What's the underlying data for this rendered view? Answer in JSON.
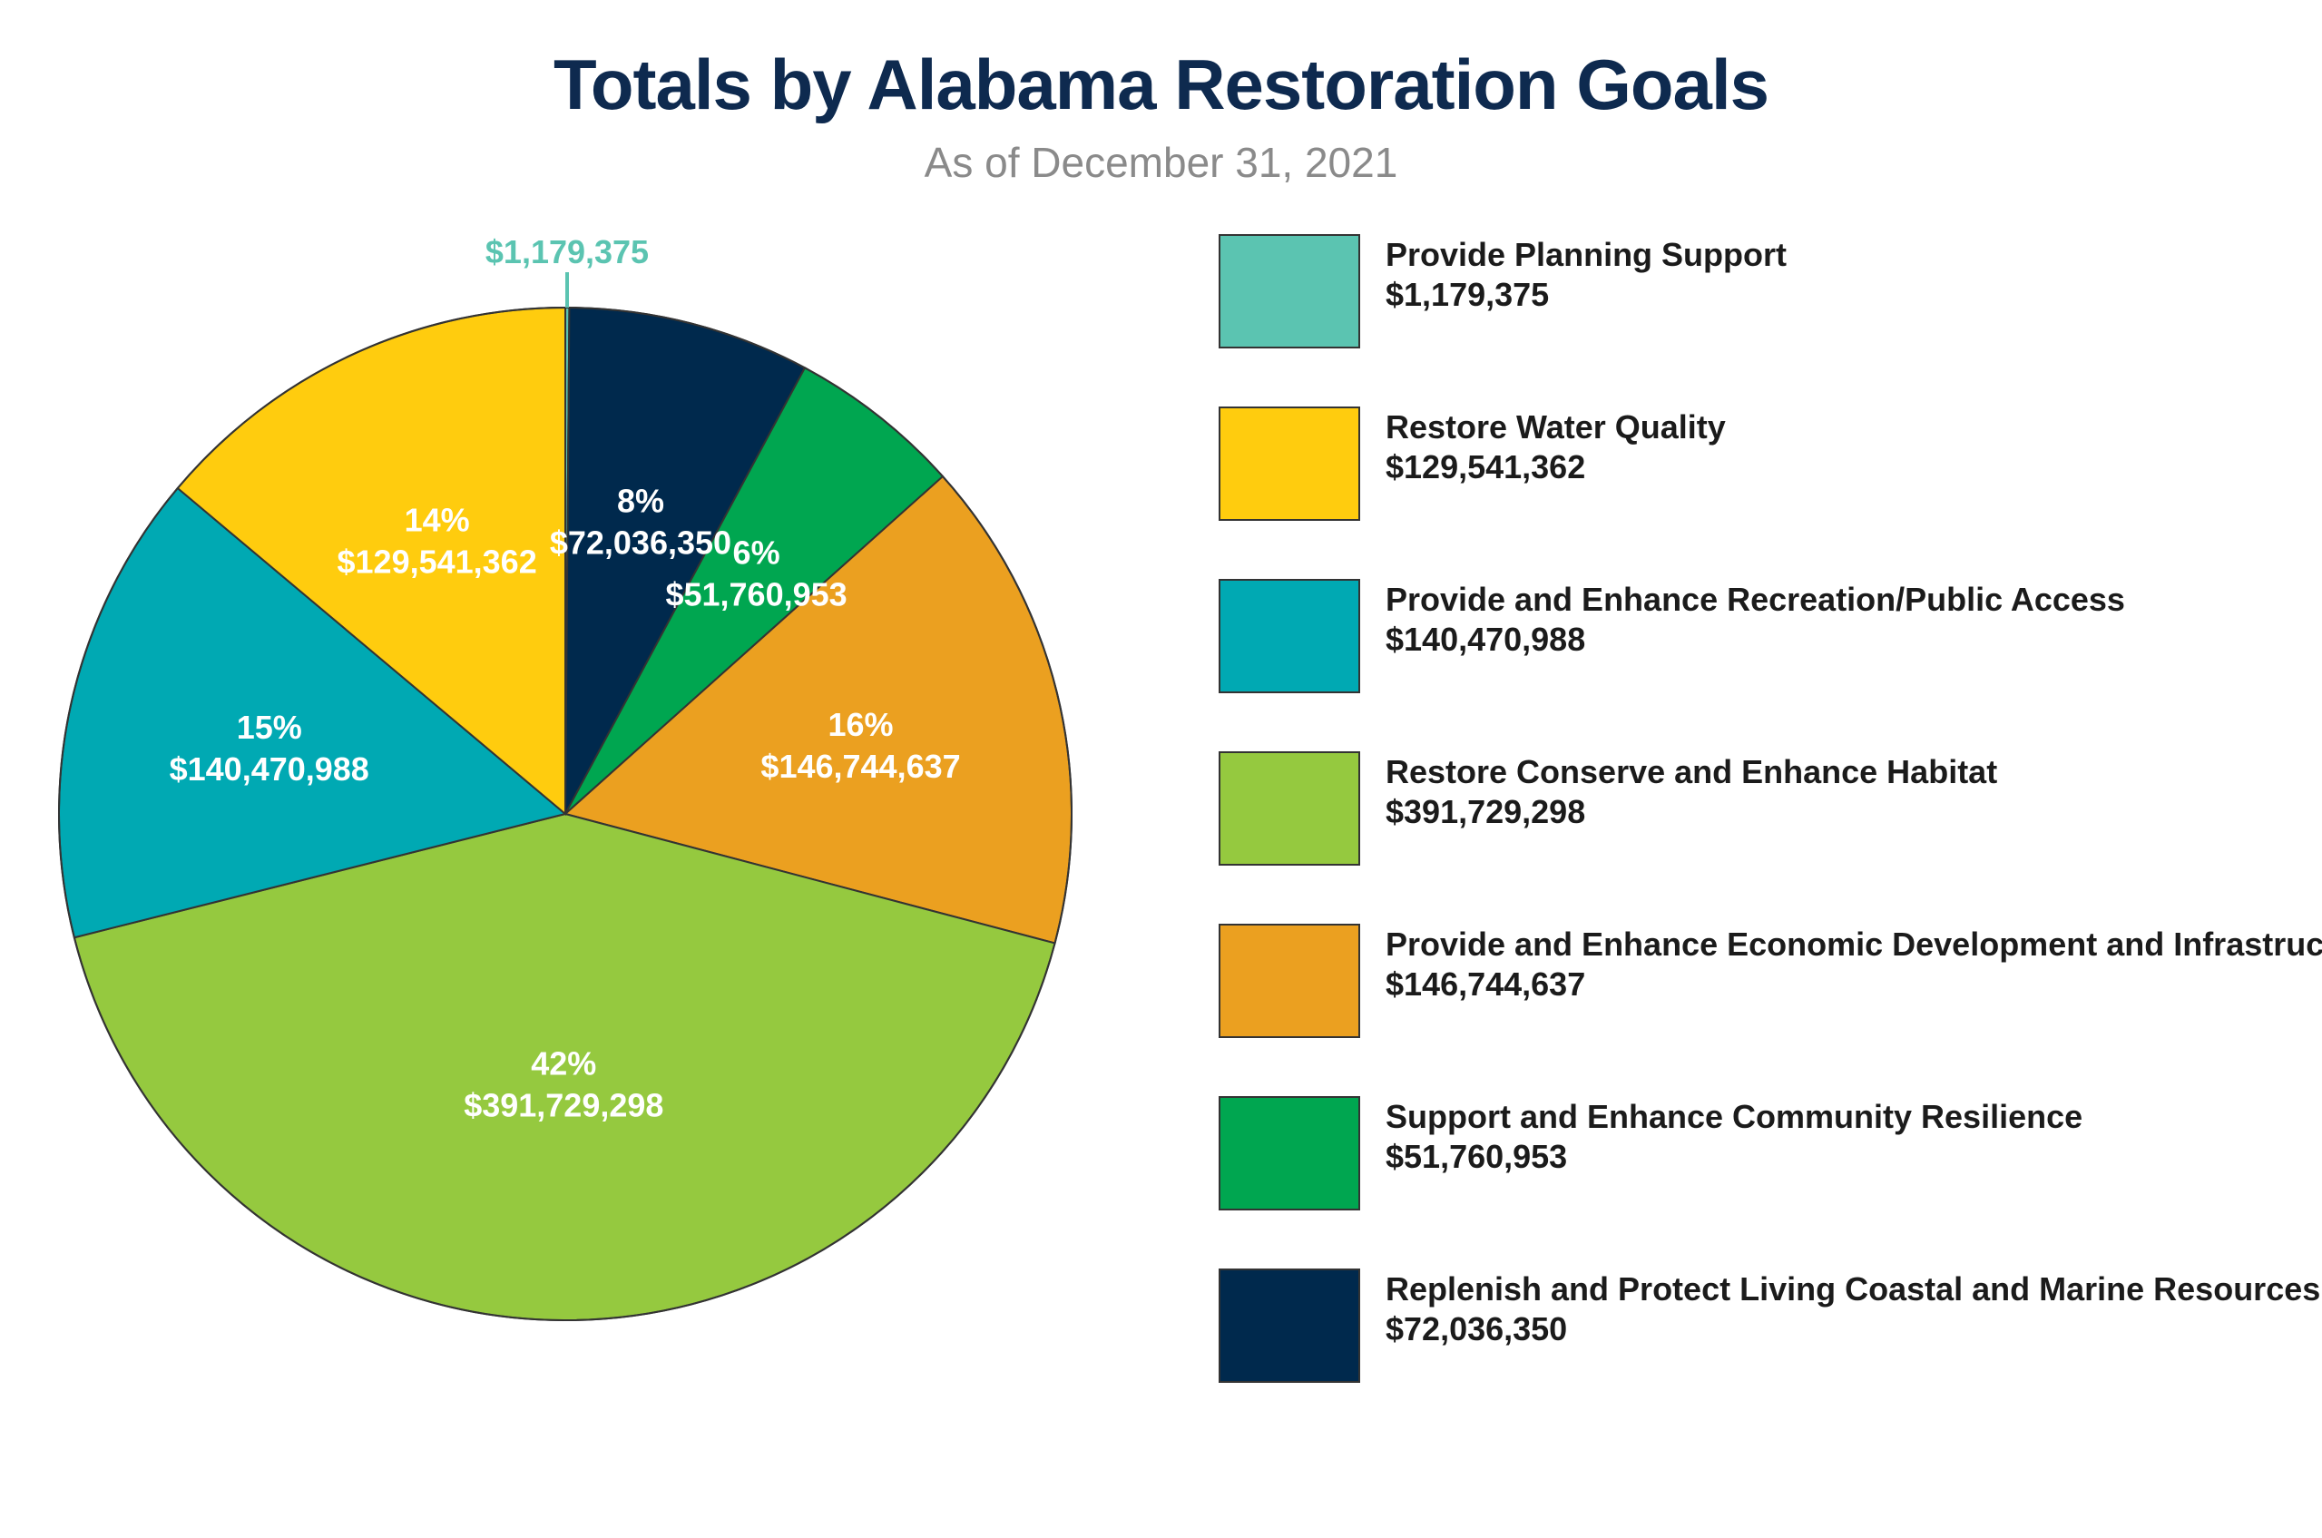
{
  "chart_data": {
    "type": "pie",
    "title": "Totals by Alabama Restoration Goals",
    "subtitle": "As of December 31, 2021",
    "legend_placement": "right",
    "slices": [
      {
        "name": "Provide Planning Support",
        "value": 1179375,
        "value_label": "$1,179,375",
        "percent_label": "",
        "color": "#5bc4b1"
      },
      {
        "name": "Replenish and Protect Living Coastal and Marine Resources",
        "value": 72036350,
        "value_label": "$72,036,350",
        "percent_label": "8%",
        "color": "#00294d"
      },
      {
        "name": "Support and Enhance Community Resilience",
        "value": 51760953,
        "value_label": "$51,760,953",
        "percent_label": "6%",
        "color": "#00a650"
      },
      {
        "name": "Provide and Enhance Economic Development and Infrastructure",
        "value": 146744637,
        "value_label": "$146,744,637",
        "percent_label": "16%",
        "color": "#eba020"
      },
      {
        "name": "Restore Conserve and Enhance Habitat",
        "value": 391729298,
        "value_label": "$391,729,298",
        "percent_label": "42%",
        "color": "#95c93f"
      },
      {
        "name": "Provide and Enhance Recreation/Public Access",
        "value": 140470988,
        "value_label": "$140,470,988",
        "percent_label": "15%",
        "color": "#00a9b3"
      },
      {
        "name": "Restore Water Quality",
        "value": 129541362,
        "value_label": "$129,541,362",
        "percent_label": "14%",
        "color": "#ffcc0e"
      }
    ]
  },
  "legend": [
    {
      "name": "Provide Planning Support",
      "value": "$1,179,375",
      "color": "#5bc4b1"
    },
    {
      "name": "Restore Water Quality",
      "value": "$129,541,362",
      "color": "#ffcc0e"
    },
    {
      "name": "Provide and Enhance Recreation/Public Access",
      "value": "$140,470,988",
      "color": "#00a9b3"
    },
    {
      "name": "Restore Conserve and Enhance Habitat",
      "value": "$391,729,298",
      "color": "#95c93f"
    },
    {
      "name": "Provide and Enhance Economic Development and Infrastructure",
      "value": "$146,744,637",
      "color": "#eba020"
    },
    {
      "name": "Support and Enhance Community Resilience",
      "value": "$51,760,953",
      "color": "#00a650"
    },
    {
      "name": "Replenish and Protect Living Coastal and Marine Resources",
      "value": "$72,036,350",
      "color": "#00294d"
    }
  ],
  "colors": {
    "title": "#0e2a4f",
    "subtitle": "#8a8a8a",
    "outline": "#333333",
    "small_slice_label": "#5bc4b1"
  }
}
